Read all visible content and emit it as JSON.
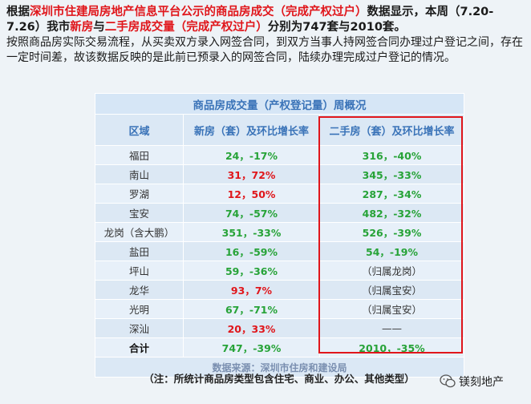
{
  "intro": {
    "p1_a": "根据",
    "p1_src": "深圳市住建局房地产信息平台公示的商品房成交（完成产权过户）",
    "p1_b": "数据显示，本周（7.20-7.26）我市",
    "p1_new": "新房",
    "p1_c": "与",
    "p1_second": "二手房成交量（完成产权过户）",
    "p1_d": "分别为747套与2010套。",
    "p2": "按照商品房实际交易流程，从买卖双方录入网签合同，到双方当事人持网签合同办理过户登记之间，存在一定时间差，故该数据反映的是此前已预录入的网签合同，陆续办理完成过户登记的情况。"
  },
  "table": {
    "title": "商品房成交量（产权登记量）周概况",
    "headers": [
      "区域",
      "新房（套）及环比增长率",
      "二手房（套）及环比增长率"
    ],
    "rows": [
      {
        "region": "福田",
        "new_count": "24",
        "new_rate": "-17%",
        "new_rate_red": false,
        "sec": "316，-40%"
      },
      {
        "region": "南山",
        "new_count": "31",
        "new_rate": "72%",
        "new_rate_red": true,
        "sec": "345，-33%"
      },
      {
        "region": "罗湖",
        "new_count": "12",
        "new_rate": "50%",
        "new_rate_red": true,
        "sec": "287，-34%"
      },
      {
        "region": "宝安",
        "new_count": "74",
        "new_rate": "-57%",
        "new_rate_red": false,
        "sec": "482，-32%"
      },
      {
        "region": "龙岗（含大鹏）",
        "new_count": "351",
        "new_rate": "-33%",
        "new_rate_red": false,
        "sec": "526，-39%"
      },
      {
        "region": "盐田",
        "new_count": "16",
        "new_rate": "-59%",
        "new_rate_red": false,
        "sec": "54，-19%"
      },
      {
        "region": "坪山",
        "new_count": "59",
        "new_rate": "-36%",
        "new_rate_red": false,
        "sec": "（归属龙岗）"
      },
      {
        "region": "龙华",
        "new_count": "93",
        "new_rate": "7%",
        "new_rate_red": true,
        "sec": "（归属宝安）"
      },
      {
        "region": "光明",
        "new_count": "67",
        "new_rate": "-71%",
        "new_rate_red": false,
        "sec": "（归属宝安）"
      },
      {
        "region": "深汕",
        "new_count": "20",
        "new_rate": "33%",
        "new_rate_red": true,
        "sec": "——"
      }
    ],
    "total": {
      "region": "合计",
      "new": "747，-39%",
      "sec": "2010，-35%"
    },
    "source": "数据来源：深圳市住房和建设局"
  },
  "note": "（注：所统计商品房类型包含住宅、商业、办公、其他类型）",
  "brand": "镁刻地产",
  "colors": {
    "accent_red": "#e0161b",
    "green": "#27a338",
    "header_blue": "#3a73b8"
  }
}
